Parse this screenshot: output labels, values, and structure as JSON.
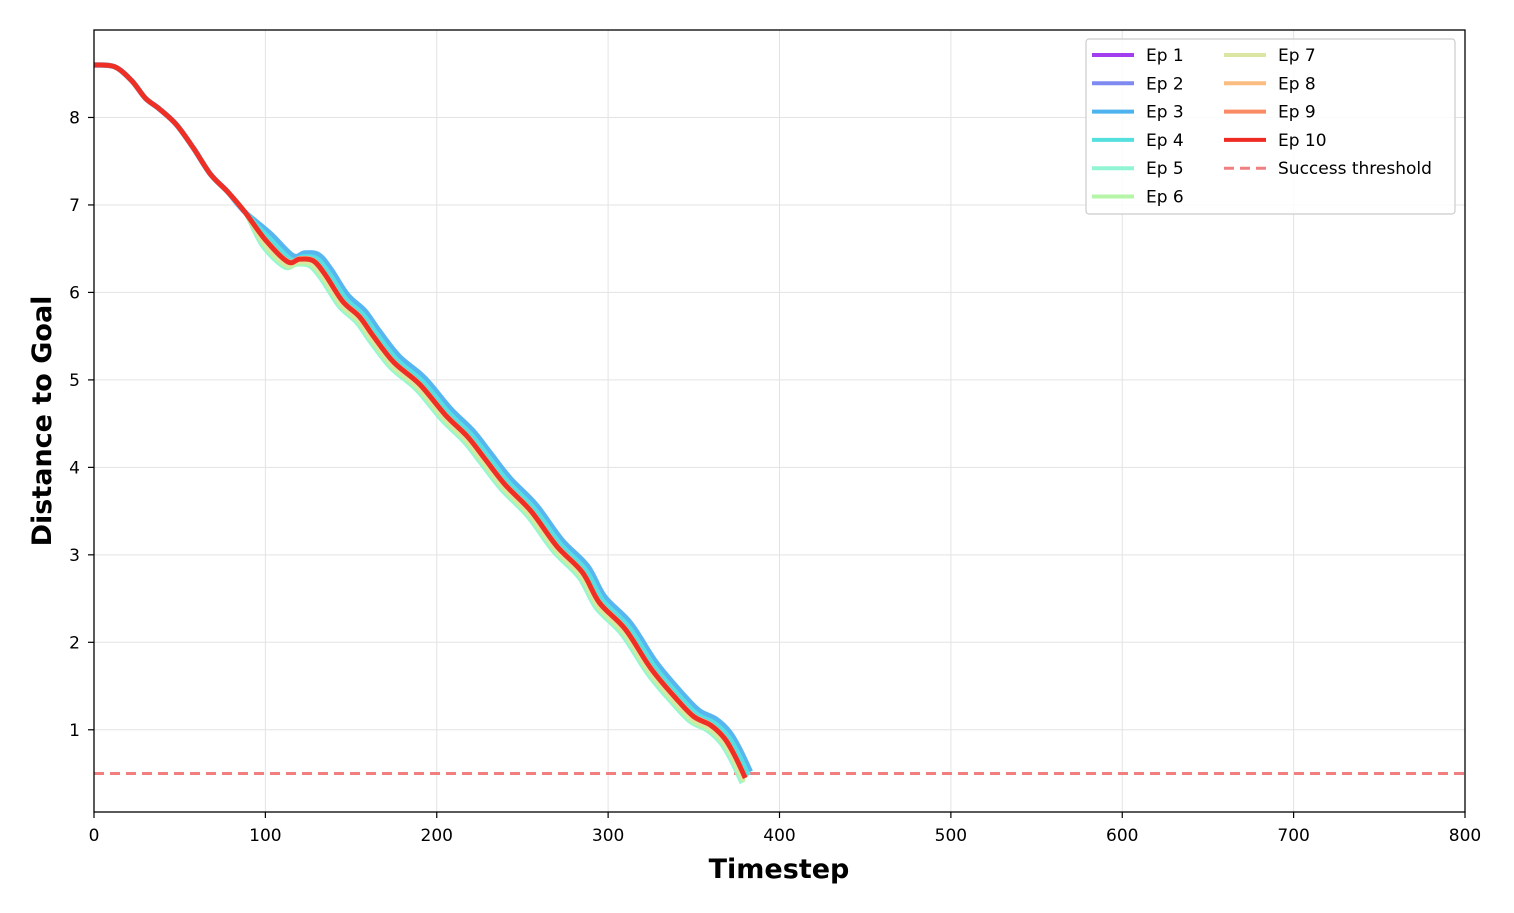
{
  "chart_data": {
    "type": "line",
    "title": "",
    "xlabel": "Timestep",
    "ylabel": "Distance to Goal",
    "xlim": [
      0,
      800
    ],
    "ylim": [
      0.06,
      9.0
    ],
    "xticks": [
      0,
      100,
      200,
      300,
      400,
      500,
      600,
      700,
      800
    ],
    "yticks": [
      1,
      2,
      3,
      4,
      5,
      6,
      7,
      8
    ],
    "grid": true,
    "legend_position": "top-right",
    "threshold": {
      "name": "Success threshold",
      "value": 0.5,
      "color": "#f08080",
      "style": "dashed"
    },
    "base_curve": {
      "x": [
        0,
        12,
        22,
        30,
        38,
        48,
        58,
        68,
        78,
        88,
        100,
        113,
        120,
        128,
        135,
        145,
        155,
        163,
        175,
        190,
        205,
        218,
        228,
        240,
        255,
        270,
        285,
        295,
        310,
        325,
        340,
        350,
        360,
        368,
        374,
        380
      ],
      "y": [
        8.6,
        8.58,
        8.42,
        8.22,
        8.1,
        7.92,
        7.65,
        7.35,
        7.15,
        6.92,
        6.6,
        6.35,
        6.38,
        6.36,
        6.2,
        5.9,
        5.72,
        5.5,
        5.2,
        4.95,
        4.6,
        4.35,
        4.1,
        3.8,
        3.5,
        3.1,
        2.8,
        2.45,
        2.15,
        1.7,
        1.35,
        1.15,
        1.05,
        0.9,
        0.7,
        0.45
      ]
    },
    "series": [
      {
        "name": "Ep 1",
        "color": "#a23ef0",
        "offset": 0.0,
        "shift": 0,
        "width": 4.5
      },
      {
        "name": "Ep 2",
        "color": "#7f8af0",
        "offset": 0.02,
        "shift": 1,
        "width": 4.5
      },
      {
        "name": "Ep 3",
        "color": "#4eb2ee",
        "offset": 0.07,
        "shift": 3,
        "width": 5.5
      },
      {
        "name": "Ep 4",
        "color": "#55e0e0",
        "offset": 0.03,
        "shift": 2,
        "width": 4.5
      },
      {
        "name": "Ep 5",
        "color": "#8ff5d4",
        "offset": -0.06,
        "shift": -2,
        "width": 4.5
      },
      {
        "name": "Ep 6",
        "color": "#b4f5a8",
        "offset": -0.05,
        "shift": -1,
        "width": 4.5
      },
      {
        "name": "Ep 7",
        "color": "#dce6a2",
        "offset": -0.03,
        "shift": -1,
        "width": 4.5
      },
      {
        "name": "Ep 8",
        "color": "#fbbc82",
        "offset": 0.01,
        "shift": 0,
        "width": 4.5
      },
      {
        "name": "Ep 9",
        "color": "#fa8a64",
        "offset": 0.0,
        "shift": 0,
        "width": 4.5
      },
      {
        "name": "Ep 10",
        "color": "#ee2a22",
        "offset": 0.0,
        "shift": 0,
        "width": 5.0
      }
    ]
  }
}
